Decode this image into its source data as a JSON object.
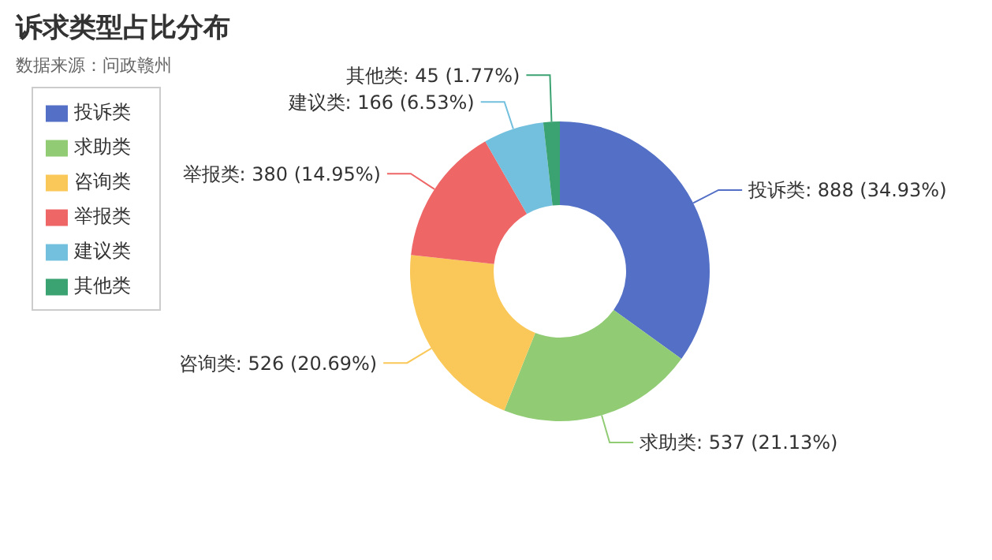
{
  "chart_data": {
    "type": "donut",
    "title": "诉求类型占比分布",
    "subtitle": "数据来源：问政赣州",
    "categories": [
      "投诉类",
      "求助类",
      "咨询类",
      "举报类",
      "建议类",
      "其他类"
    ],
    "values": [
      888,
      537,
      526,
      380,
      166,
      45
    ],
    "colors": [
      "#5470c6",
      "#91cc75",
      "#fac858",
      "#ee6666",
      "#73c0de",
      "#3ba272"
    ],
    "value_labels": [
      "投诉类: 888 (34.93%)",
      "求助类: 537 (21.13%)",
      "咨询类: 526 (20.69%)",
      "举报类: 380 (14.95%)",
      "建议类: 166 (6.53%)",
      "其他类: 45 (1.77%)"
    ],
    "legend": "top left"
  }
}
